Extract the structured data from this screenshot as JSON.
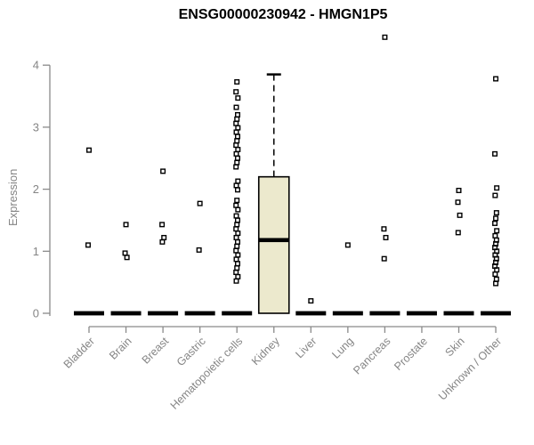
{
  "chart_data": {
    "type": "boxplot",
    "title": "ENSG00000230942 - HMGN1P5",
    "xlabel": "",
    "ylabel": "Expression",
    "yticks": [
      0,
      1,
      2,
      3,
      4
    ],
    "ylim": [
      0,
      4.55
    ],
    "grid": false,
    "legend": "none",
    "colors": {
      "box_fill": "#ECE9CD",
      "box_stroke": "#000000",
      "median": "#000000",
      "outlier": "#000000",
      "axis_line": "#8a8a8a",
      "tick_label": "#858585",
      "title": "#000000"
    },
    "series": [
      {
        "category": "Bladder",
        "q1": 0,
        "median": 0,
        "q3": 0,
        "whisker_low": 0,
        "whisker_high": 0,
        "outliers": [
          2.63,
          1.1
        ]
      },
      {
        "category": "Brain",
        "q1": 0,
        "median": 0,
        "q3": 0,
        "whisker_low": 0,
        "whisker_high": 0,
        "outliers": [
          1.43,
          0.97,
          0.9
        ]
      },
      {
        "category": "Breast",
        "q1": 0,
        "median": 0,
        "q3": 0,
        "whisker_low": 0,
        "whisker_high": 0,
        "outliers": [
          2.29,
          1.43,
          1.22,
          1.15
        ]
      },
      {
        "category": "Gastric",
        "q1": 0,
        "median": 0,
        "q3": 0,
        "whisker_low": 0,
        "whisker_high": 0,
        "outliers": [
          1.77,
          1.02
        ]
      },
      {
        "category": "Hematopoietic cells",
        "q1": 0,
        "median": 0,
        "q3": 0,
        "whisker_low": 0,
        "whisker_high": 0,
        "outliers": [
          3.73,
          3.57,
          3.47,
          3.32,
          3.2,
          3.13,
          3.06,
          2.99,
          2.92,
          2.85,
          2.78,
          2.71,
          2.64,
          2.57,
          2.5,
          2.43,
          2.36,
          2.13,
          2.06,
          1.99,
          1.82,
          1.74,
          1.67,
          1.57,
          1.5,
          1.43,
          1.36,
          1.29,
          1.22,
          1.15,
          1.08,
          1.01,
          0.94,
          0.87,
          0.8,
          0.73,
          0.66,
          0.59,
          0.52
        ]
      },
      {
        "category": "Kidney",
        "q1": 0,
        "median": 1.18,
        "q3": 2.2,
        "whisker_low": 0,
        "whisker_high": 3.85,
        "outliers": []
      },
      {
        "category": "Liver",
        "q1": 0,
        "median": 0,
        "q3": 0,
        "whisker_low": 0,
        "whisker_high": 0,
        "outliers": [
          0.2
        ]
      },
      {
        "category": "Lung",
        "q1": 0,
        "median": 0,
        "q3": 0,
        "whisker_low": 0,
        "whisker_high": 0,
        "outliers": [
          1.1
        ]
      },
      {
        "category": "Pancreas",
        "q1": 0,
        "median": 0,
        "q3": 0,
        "whisker_low": 0,
        "whisker_high": 0,
        "outliers": [
          4.45,
          1.36,
          1.22,
          0.88
        ]
      },
      {
        "category": "Prostate",
        "q1": 0,
        "median": 0,
        "q3": 0,
        "whisker_low": 0,
        "whisker_high": 0,
        "outliers": []
      },
      {
        "category": "Skin",
        "q1": 0,
        "median": 0,
        "q3": 0,
        "whisker_low": 0,
        "whisker_high": 0,
        "outliers": [
          1.98,
          1.79,
          1.58,
          1.3
        ]
      },
      {
        "category": "Unknown / Other",
        "q1": 0,
        "median": 0,
        "q3": 0,
        "whisker_low": 0,
        "whisker_high": 0,
        "outliers": [
          3.78,
          2.57,
          2.02,
          1.9,
          1.62,
          1.53,
          1.45,
          1.33,
          1.25,
          1.18,
          1.12,
          1.06,
          1.0,
          0.94,
          0.88,
          0.82,
          0.76,
          0.7,
          0.63,
          0.55,
          0.48
        ]
      }
    ]
  }
}
